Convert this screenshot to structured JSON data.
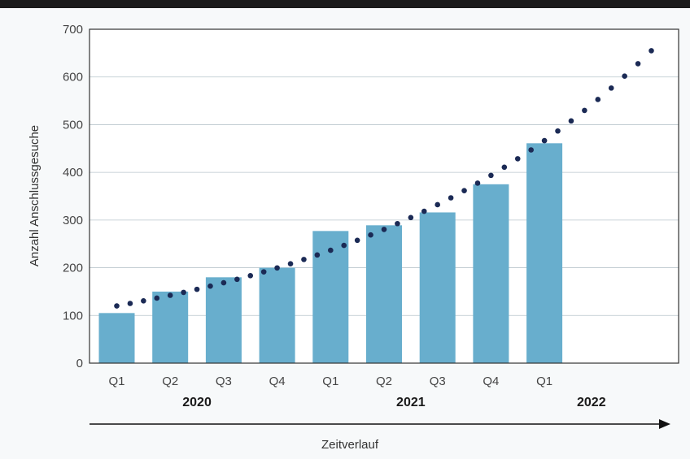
{
  "chart_data": {
    "type": "bar",
    "categories": [
      "Q1",
      "Q2",
      "Q3",
      "Q4",
      "Q1",
      "Q2",
      "Q3",
      "Q4",
      "Q1"
    ],
    "years": [
      {
        "label": "2020",
        "center_index": 1.5
      },
      {
        "label": "2021",
        "center_index": 5.5
      },
      {
        "label": "2022",
        "center_index": 9
      }
    ],
    "series": [
      {
        "values": [
          105,
          150,
          180,
          200,
          277,
          289,
          316,
          375,
          461
        ]
      }
    ],
    "trend": {
      "type": "exponential-dotted",
      "x_range": [
        0,
        10
      ],
      "values_at_endpoints": [
        120,
        655
      ],
      "style": "dotted"
    },
    "ylabel": "Anzahl Anschlussgesuche",
    "xlabel": "Zeitverlauf",
    "ylim": [
      0,
      700
    ],
    "yticks": [
      0,
      100,
      200,
      300,
      400,
      500,
      600,
      700
    ],
    "grid": true,
    "colors": {
      "bar": "#68aecd",
      "trend": "#1b2a55",
      "grid": "#b9c5cc",
      "axis": "#333333",
      "background": "#ffffff"
    }
  }
}
